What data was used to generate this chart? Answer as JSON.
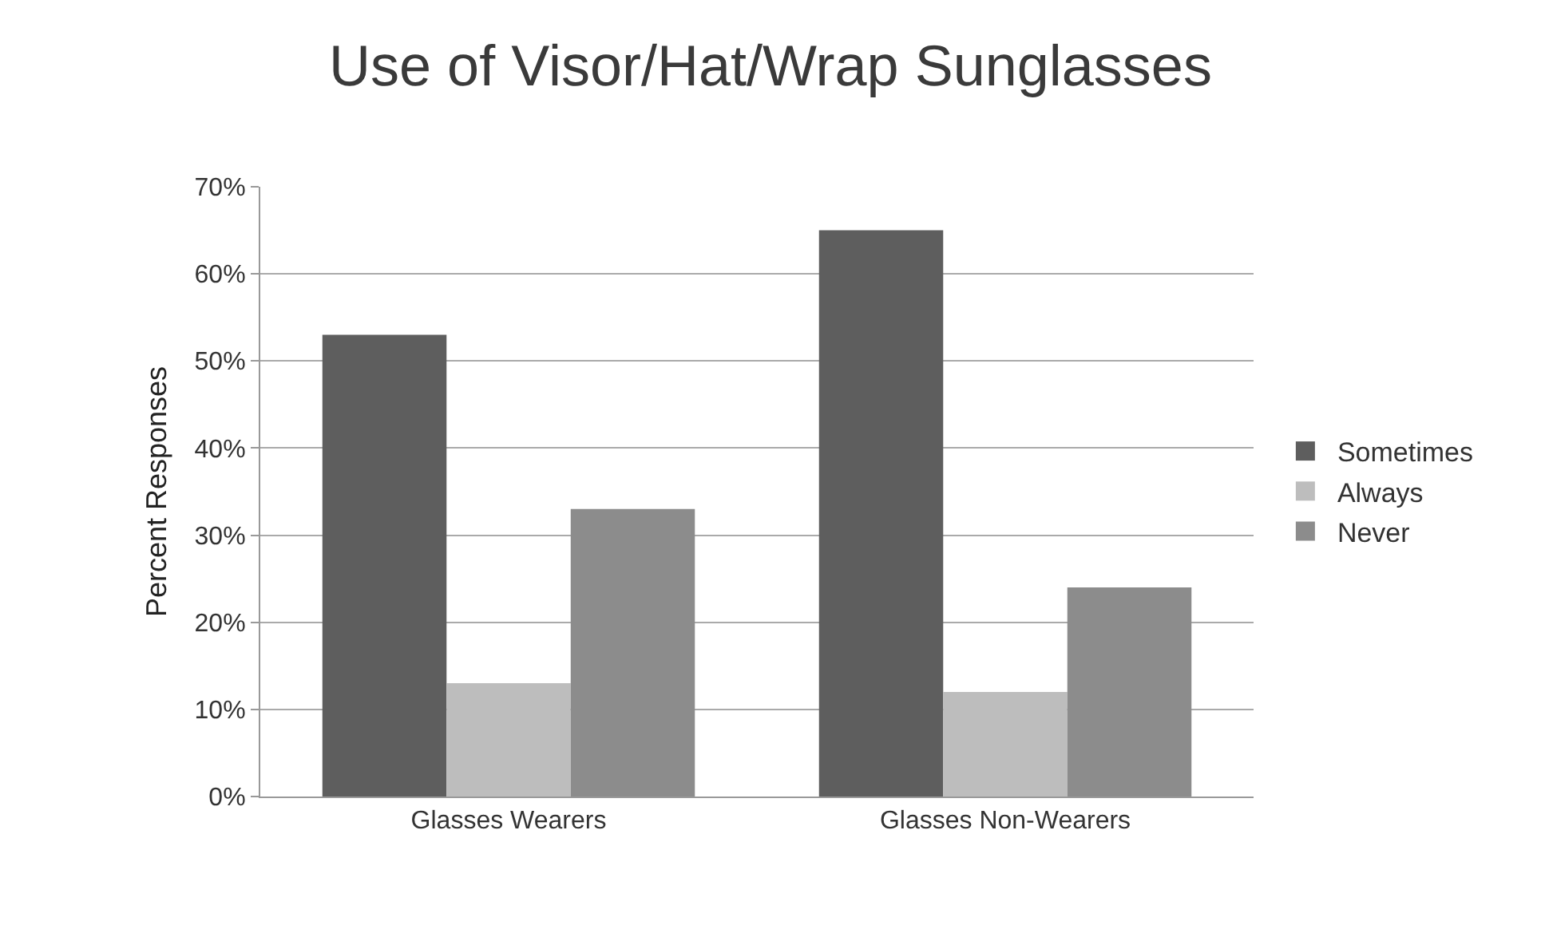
{
  "chart_data": {
    "type": "bar",
    "title": "Use of Visor/Hat/Wrap Sunglasses",
    "ylabel": "Percent Responses",
    "categories": [
      "Glasses Wearers",
      "Glasses Non-Wearers"
    ],
    "series": [
      {
        "name": "Sometimes",
        "color": "#5e5e5e",
        "values": [
          53,
          65
        ]
      },
      {
        "name": "Always",
        "color": "#bdbdbd",
        "values": [
          13,
          12
        ]
      },
      {
        "name": "Never",
        "color": "#8c8c8c",
        "values": [
          33,
          24
        ]
      }
    ],
    "ylim": [
      0,
      70
    ],
    "yticks": [
      {
        "value": 0,
        "label": "0%"
      },
      {
        "value": 10,
        "label": "10%"
      },
      {
        "value": 20,
        "label": "20%"
      },
      {
        "value": 30,
        "label": "30%"
      },
      {
        "value": 40,
        "label": "40%"
      },
      {
        "value": 50,
        "label": "50%"
      },
      {
        "value": 60,
        "label": "60%"
      },
      {
        "value": 70,
        "label": "70%"
      }
    ],
    "grid": "y",
    "legend": "right"
  }
}
